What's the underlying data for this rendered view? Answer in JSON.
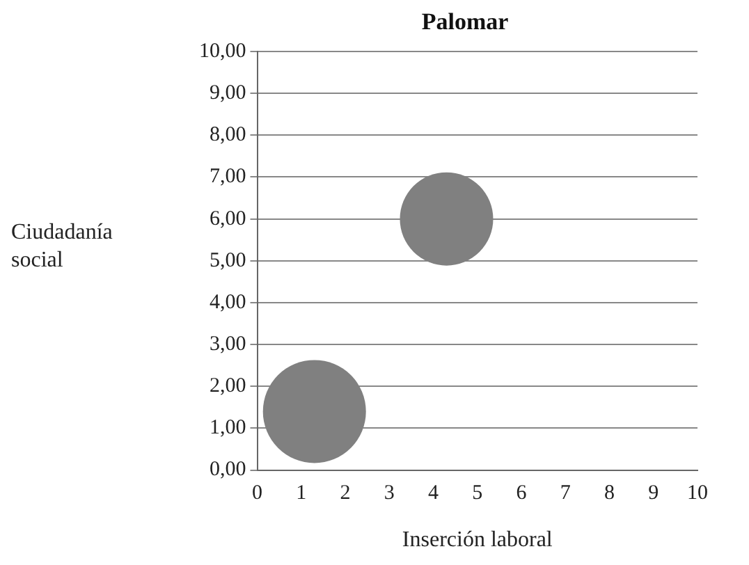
{
  "chart_data": {
    "type": "bubble",
    "title": "Palomar",
    "xlabel": "Inserción laboral",
    "ylabel": "Ciudadanía social",
    "x": [
      1.3,
      4.3
    ],
    "values": [
      1.4,
      6.0
    ],
    "sizes": [
      1,
      0.82
    ],
    "color": "#808080",
    "xlim": [
      0,
      10
    ],
    "xticks": [
      0,
      1,
      2,
      3,
      4,
      5,
      6,
      7,
      8,
      9,
      10
    ],
    "ylim": [
      0,
      10
    ],
    "yticks": [
      {
        "value": 0,
        "label": "0,00"
      },
      {
        "value": 1,
        "label": "1,00"
      },
      {
        "value": 2,
        "label": "2,00"
      },
      {
        "value": 3,
        "label": "3,00"
      },
      {
        "value": 4,
        "label": "4,00"
      },
      {
        "value": 5,
        "label": "5,00"
      },
      {
        "value": 6,
        "label": "6,00"
      },
      {
        "value": 7,
        "label": "7,00"
      },
      {
        "value": 8,
        "label": "8,00"
      },
      {
        "value": 9,
        "label": "9,00"
      },
      {
        "value": 10,
        "label": "10,00"
      }
    ],
    "grid": "y",
    "legend": false
  }
}
